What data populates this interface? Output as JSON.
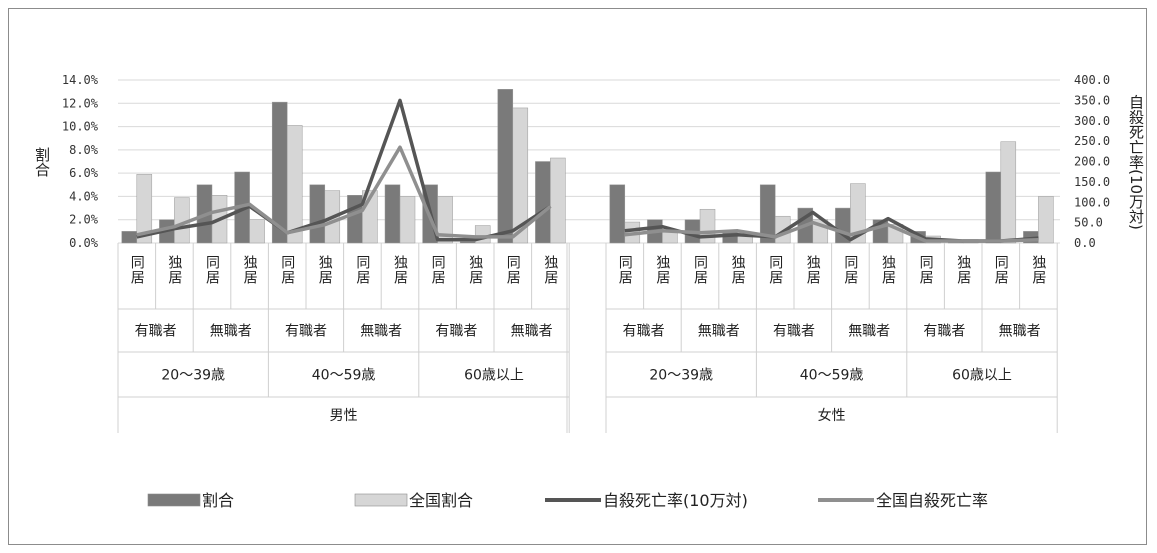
{
  "chart_data": {
    "type": "bar",
    "ylabel": "割合",
    "y2label": "自殺死亡率(10万対)",
    "ylim": [
      0,
      14
    ],
    "y2lim": [
      0,
      400
    ],
    "y_ticks": [
      "0.0%",
      "2.0%",
      "4.0%",
      "6.0%",
      "8.0%",
      "10.0%",
      "12.0%",
      "14.0%"
    ],
    "y2_ticks": [
      "0.0",
      "50.0",
      "100.0",
      "150.0",
      "200.0",
      "250.0",
      "300.0",
      "350.0",
      "400.0"
    ],
    "x_level1": [
      "同居",
      "独居"
    ],
    "x_level2": [
      "有職者",
      "無職者"
    ],
    "x_level3": [
      "20～39歳",
      "40～59歳",
      "60歳以上"
    ],
    "x_level4": [
      "男性",
      "女性"
    ],
    "categories": [
      "男性 20～39歳 有職者 同居",
      "男性 20～39歳 有職者 独居",
      "男性 20～39歳 無職者 同居",
      "男性 20～39歳 無職者 独居",
      "男性 40～59歳 有職者 同居",
      "男性 40～59歳 有職者 独居",
      "男性 40～59歳 無職者 同居",
      "男性 40～59歳 無職者 独居",
      "男性 60歳以上 有職者 同居",
      "男性 60歳以上 有職者 独居",
      "男性 60歳以上 無職者 同居",
      "男性 60歳以上 無職者 独居",
      "女性 20～39歳 有職者 同居",
      "女性 20～39歳 有職者 独居",
      "女性 20～39歳 無職者 同居",
      "女性 20～39歳 無職者 独居",
      "女性 40～59歳 有職者 同居",
      "女性 40～59歳 有職者 独居",
      "女性 40～59歳 無職者 同居",
      "女性 40～59歳 無職者 独居",
      "女性 60歳以上 有職者 同居",
      "女性 60歳以上 有職者 独居",
      "女性 60歳以上 無職者 同居",
      "女性 60歳以上 無職者 独居"
    ],
    "series": [
      {
        "name": "割合",
        "kind": "bar",
        "axis": "left",
        "color": "#7a7a7a",
        "values": [
          1.0,
          2.0,
          5.0,
          6.1,
          12.1,
          5.0,
          4.1,
          5.0,
          5.0,
          0.1,
          13.2,
          7.0,
          5.0,
          2.0,
          2.0,
          1.0,
          5.0,
          3.0,
          3.0,
          2.0,
          1.0,
          0.1,
          6.1,
          1.0
        ]
      },
      {
        "name": "全国割合",
        "kind": "bar",
        "axis": "left",
        "color": "#d6d6d6",
        "values": [
          5.9,
          3.9,
          4.1,
          2.0,
          10.1,
          4.5,
          4.5,
          4.0,
          4.0,
          1.5,
          11.6,
          7.3,
          1.8,
          1.0,
          2.9,
          0.9,
          2.3,
          2.0,
          5.1,
          1.6,
          0.6,
          0.3,
          8.7,
          4.0
        ]
      },
      {
        "name": "自殺死亡率(10万対)",
        "kind": "line",
        "axis": "right",
        "color": "#555555",
        "values": [
          15,
          35,
          50,
          90,
          25,
          55,
          95,
          350,
          8,
          8,
          30,
          90,
          30,
          40,
          15,
          20,
          15,
          75,
          8,
          60,
          10,
          5,
          5,
          12
        ]
      },
      {
        "name": "全国自殺死亡率",
        "kind": "line",
        "axis": "right",
        "color": "#8f8f8f",
        "values": [
          20,
          40,
          75,
          95,
          25,
          45,
          80,
          235,
          20,
          15,
          15,
          90,
          20,
          30,
          25,
          30,
          15,
          50,
          20,
          45,
          5,
          5,
          5,
          8
        ]
      }
    ],
    "legend_position": "bottom",
    "grid": true
  }
}
